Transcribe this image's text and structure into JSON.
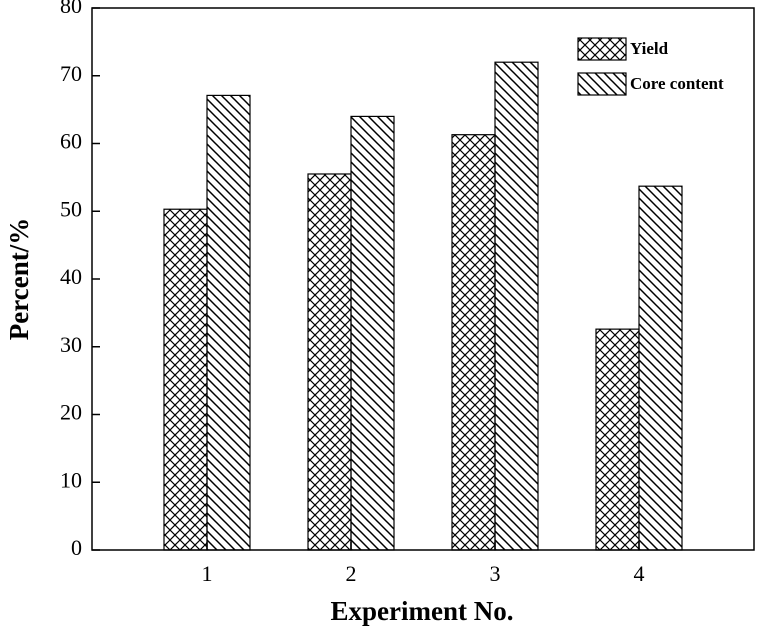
{
  "chart_data": {
    "type": "bar",
    "title": null,
    "x_label": "Experiment No.",
    "y_label": "Percent/%",
    "categories": [
      "1",
      "2",
      "3",
      "4"
    ],
    "series": [
      {
        "name": "Yield",
        "color": "#000000",
        "hatch": "cross",
        "values": [
          50.3,
          55.5,
          61.3,
          32.6
        ]
      },
      {
        "name": "Core content",
        "color": "#000000",
        "hatch": "backslash",
        "values": [
          67.1,
          64.0,
          72.0,
          53.7
        ]
      }
    ],
    "ylim": [
      0,
      80
    ],
    "yticks": [
      0,
      10,
      20,
      30,
      40,
      50,
      60,
      70,
      80
    ],
    "grid": false,
    "legend": "upper right"
  }
}
